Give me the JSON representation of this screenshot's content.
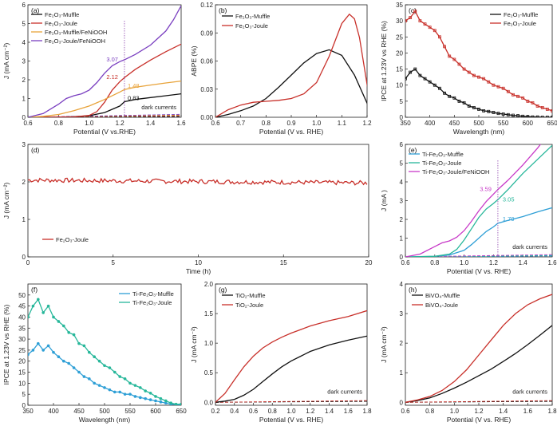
{
  "chart_data": [
    {
      "type": "line",
      "panel_label": "(a)",
      "xlabel": "Potential (V vs.RHE)",
      "ylabel": "J (mA cm⁻²)",
      "xlim": [
        0.6,
        1.6
      ],
      "ylim": [
        0,
        6
      ],
      "xticks": [
        "0.6",
        "0.8",
        "1.0",
        "1.2",
        "1.4",
        "1.6"
      ],
      "yticks": [
        "0",
        "1",
        "2",
        "3",
        "4",
        "5",
        "6"
      ],
      "series": [
        {
          "name": "Fe₂O₃-Muffle",
          "color": "#111111",
          "x": [
            0.6,
            0.8,
            0.9,
            1.0,
            1.1,
            1.2,
            1.23,
            1.3,
            1.4,
            1.5,
            1.6
          ],
          "y": [
            0,
            0.01,
            0.03,
            0.08,
            0.25,
            0.6,
            0.83,
            0.95,
            1.05,
            1.15,
            1.25
          ]
        },
        {
          "name": "Fe₂O₃-Joule",
          "color": "#c8302a",
          "x": [
            0.6,
            0.9,
            1.0,
            1.05,
            1.1,
            1.15,
            1.2,
            1.23,
            1.3,
            1.4,
            1.5,
            1.6
          ],
          "y": [
            0,
            0.02,
            0.1,
            0.3,
            0.8,
            1.45,
            1.9,
            2.12,
            2.55,
            3.05,
            3.5,
            3.9
          ]
        },
        {
          "name": "Fe₂O₃-Muffle/FeNiOOH",
          "color": "#e8a33a",
          "x": [
            0.6,
            0.7,
            0.8,
            0.9,
            1.0,
            1.1,
            1.2,
            1.23,
            1.3,
            1.4,
            1.5,
            1.6
          ],
          "y": [
            0,
            0.05,
            0.15,
            0.35,
            0.6,
            0.95,
            1.35,
            1.48,
            1.6,
            1.72,
            1.83,
            1.93
          ]
        },
        {
          "name": "Fe₂O₃-Joule/FeNiOOH",
          "color": "#7a3fc0",
          "x": [
            0.6,
            0.7,
            0.8,
            0.85,
            0.9,
            0.95,
            1.0,
            1.05,
            1.1,
            1.15,
            1.2,
            1.23,
            1.3,
            1.4,
            1.5,
            1.55,
            1.6
          ],
          "y": [
            0,
            0.2,
            0.7,
            1.0,
            1.15,
            1.25,
            1.45,
            1.85,
            2.35,
            2.75,
            2.97,
            3.07,
            3.35,
            3.85,
            4.6,
            5.2,
            5.95
          ]
        }
      ],
      "dark_currents_label": "dark currents",
      "annotations": [
        "3.07",
        "2.12",
        "1.48",
        "0.83"
      ]
    },
    {
      "type": "line",
      "panel_label": "(b)",
      "xlabel": "Potential (V vs. RHE)",
      "ylabel": "ABPE (%)",
      "xlim": [
        0.6,
        1.2
      ],
      "ylim": [
        0,
        0.12
      ],
      "xticks": [
        "0.6",
        "0.7",
        "0.8",
        "0.9",
        "1.0",
        "1.1",
        "1.2"
      ],
      "yticks": [
        "0.00",
        "0.03",
        "0.06",
        "0.09",
        "0.12"
      ],
      "series": [
        {
          "name": "Fe₂O₃-Muffle",
          "color": "#111111",
          "x": [
            0.6,
            0.65,
            0.7,
            0.75,
            0.8,
            0.85,
            0.9,
            0.95,
            1.0,
            1.05,
            1.1,
            1.15,
            1.2,
            1.22
          ],
          "y": [
            0,
            0.003,
            0.007,
            0.012,
            0.02,
            0.032,
            0.045,
            0.058,
            0.068,
            0.072,
            0.066,
            0.045,
            0.015,
            0.004
          ]
        },
        {
          "name": "Fe₂O₃-Joule",
          "color": "#c8302a",
          "x": [
            0.6,
            0.65,
            0.7,
            0.75,
            0.8,
            0.85,
            0.9,
            0.95,
            1.0,
            1.05,
            1.1,
            1.13,
            1.15,
            1.17,
            1.2,
            1.22
          ],
          "y": [
            0,
            0.008,
            0.013,
            0.016,
            0.017,
            0.018,
            0.02,
            0.025,
            0.037,
            0.065,
            0.1,
            0.11,
            0.105,
            0.085,
            0.035,
            0.005
          ]
        }
      ]
    },
    {
      "type": "line",
      "panel_label": "(c)",
      "xlabel": "Wavelength (nm)",
      "ylabel": "IPCE at 1.23V vs RHE (%)",
      "xlim": [
        350,
        650
      ],
      "ylim": [
        0,
        35
      ],
      "xticks": [
        "350",
        "400",
        "450",
        "500",
        "550",
        "600",
        "650"
      ],
      "yticks": [
        "0",
        "5",
        "10",
        "15",
        "20",
        "25",
        "30",
        "35"
      ],
      "series": [
        {
          "name": "Fe₂O₃-Muffle",
          "color": "#111111",
          "x": [
            350,
            360,
            370,
            380,
            390,
            400,
            410,
            420,
            430,
            440,
            450,
            460,
            470,
            480,
            490,
            500,
            510,
            520,
            530,
            540,
            550,
            560,
            570,
            580,
            590,
            600,
            610,
            620,
            630,
            640,
            650
          ],
          "y": [
            12,
            14,
            15,
            13,
            12,
            11,
            10,
            9,
            7.5,
            6.5,
            6,
            5,
            4.5,
            3.5,
            3,
            2.5,
            2,
            1.8,
            1.5,
            1.2,
            1,
            0.8,
            0.6,
            0.5,
            0.3,
            0.2,
            0.1,
            0.1,
            0,
            0,
            0
          ]
        },
        {
          "name": "Fe₂O₃-Joule",
          "color": "#c8302a",
          "x": [
            350,
            360,
            370,
            380,
            390,
            400,
            410,
            420,
            430,
            440,
            450,
            460,
            470,
            480,
            490,
            500,
            510,
            520,
            530,
            540,
            550,
            560,
            570,
            580,
            590,
            600,
            610,
            620,
            630,
            640,
            650
          ],
          "y": [
            30,
            31,
            33,
            30,
            29,
            28,
            27,
            25,
            22,
            19,
            18,
            16.5,
            15,
            14,
            13,
            12.5,
            12,
            11,
            10,
            9.5,
            9,
            8,
            7,
            6.5,
            6,
            5,
            4.5,
            3.5,
            3,
            2.5,
            2
          ]
        }
      ]
    },
    {
      "type": "line",
      "panel_label": "(d)",
      "xlabel": "Time (h)",
      "ylabel": "J (mA cm⁻²)",
      "xlim": [
        0,
        20
      ],
      "ylim": [
        0,
        3
      ],
      "xticks": [
        "0",
        "5",
        "10",
        "15",
        "20"
      ],
      "yticks": [
        "0",
        "1",
        "2",
        "3"
      ],
      "series": [
        {
          "name": "Fe₂O₃-Joule",
          "color": "#c8302a",
          "x": [
            0,
            20
          ],
          "y": [
            2.05,
            1.97
          ]
        }
      ]
    },
    {
      "type": "line",
      "panel_label": "(e)",
      "xlabel": "Potential (V vs. RHE)",
      "ylabel": "J (mA )",
      "xlim": [
        0.6,
        1.6
      ],
      "ylim": [
        0,
        6
      ],
      "xticks": [
        "0.6",
        "0.8",
        "1.0",
        "1.2",
        "1.4",
        "1.6"
      ],
      "yticks": [
        "0",
        "1",
        "2",
        "3",
        "4",
        "5",
        "6"
      ],
      "series": [
        {
          "name": "Ti-Fe₂O₃-Muffle",
          "color": "#2e9fd6",
          "x": [
            0.6,
            0.8,
            0.9,
            1.0,
            1.05,
            1.1,
            1.15,
            1.2,
            1.23,
            1.3,
            1.4,
            1.5,
            1.6
          ],
          "y": [
            0,
            0.03,
            0.1,
            0.35,
            0.65,
            1.0,
            1.35,
            1.6,
            1.79,
            1.95,
            2.15,
            2.4,
            2.62
          ]
        },
        {
          "name": "Ti-Fe₂O₃-Joule",
          "color": "#27b79a",
          "x": [
            0.6,
            0.8,
            0.9,
            0.95,
            1.0,
            1.05,
            1.1,
            1.15,
            1.2,
            1.23,
            1.3,
            1.4,
            1.5,
            1.6
          ],
          "y": [
            0,
            0.03,
            0.15,
            0.4,
            0.9,
            1.5,
            2.1,
            2.55,
            2.85,
            3.05,
            3.6,
            4.45,
            5.2,
            5.95
          ]
        },
        {
          "name": "Ti-Fe₂O₃-Joule/FeNiOOH",
          "color": "#c83ac8",
          "x": [
            0.6,
            0.7,
            0.8,
            0.85,
            0.9,
            0.95,
            1.0,
            1.05,
            1.1,
            1.15,
            1.2,
            1.23,
            1.3,
            1.4,
            1.5,
            1.55
          ],
          "y": [
            0,
            0.15,
            0.55,
            0.75,
            0.85,
            1.05,
            1.4,
            1.9,
            2.45,
            2.95,
            3.35,
            3.59,
            4.1,
            4.9,
            5.8,
            6.3
          ]
        }
      ],
      "dark_currents_label": "dark currents",
      "annotations": [
        "3.59",
        "3.05",
        "1.79"
      ]
    },
    {
      "type": "line",
      "panel_label": "(f)",
      "xlabel": "Wavelength (nm)",
      "ylabel": "IPCE at 1.23V vs RHE (%)",
      "xlim": [
        350,
        650
      ],
      "ylim": [
        0,
        55
      ],
      "xticks": [
        "350",
        "400",
        "450",
        "500",
        "550",
        "600",
        "650"
      ],
      "yticks": [
        "0",
        "5",
        "10",
        "15",
        "20",
        "25",
        "30",
        "35",
        "40",
        "45",
        "50"
      ],
      "series": [
        {
          "name": "Ti-Fe₂O₃-Muffle",
          "color": "#2e9fd6",
          "x": [
            350,
            360,
            370,
            380,
            390,
            400,
            410,
            420,
            430,
            440,
            450,
            460,
            470,
            480,
            490,
            500,
            510,
            520,
            530,
            540,
            550,
            560,
            570,
            580,
            590,
            600,
            610,
            620,
            630,
            640,
            650
          ],
          "y": [
            23,
            25,
            28,
            25,
            27,
            24,
            22,
            20,
            19,
            17,
            15,
            13,
            12,
            10,
            9,
            8,
            7,
            6,
            6,
            5,
            5,
            4,
            3.5,
            3,
            2.5,
            2,
            1.5,
            1,
            0.5,
            0.3,
            0
          ]
        },
        {
          "name": "Ti-Fe₂O₃-Joule",
          "color": "#27b79a",
          "x": [
            350,
            360,
            370,
            380,
            390,
            400,
            410,
            420,
            430,
            440,
            450,
            460,
            470,
            480,
            490,
            500,
            510,
            520,
            530,
            540,
            550,
            560,
            570,
            580,
            590,
            600,
            610,
            620,
            630,
            640,
            650
          ],
          "y": [
            40,
            45,
            48,
            42,
            45,
            40,
            38,
            36,
            33,
            32,
            28,
            27,
            24,
            22,
            20,
            18,
            17,
            15,
            13,
            12,
            10,
            9,
            8,
            6.5,
            5.5,
            4,
            3,
            2,
            1,
            0.5,
            0.5
          ]
        }
      ]
    },
    {
      "type": "line",
      "panel_label": "(g)",
      "xlabel": "Potential (V vs. RHE)",
      "ylabel": "J (mA cm⁻²)",
      "xlim": [
        0.2,
        1.8
      ],
      "ylim": [
        -0.05,
        2.0
      ],
      "xticks": [
        "0.2",
        "0.4",
        "0.6",
        "0.8",
        "1.0",
        "1.2",
        "1.4",
        "1.6",
        "1.8"
      ],
      "yticks": [
        "0.0",
        "0.5",
        "1.0",
        "1.5",
        "2.0"
      ],
      "series": [
        {
          "name": "TiO₂-Muffle",
          "color": "#111111",
          "x": [
            0.2,
            0.3,
            0.4,
            0.5,
            0.6,
            0.7,
            0.8,
            0.9,
            1.0,
            1.1,
            1.2,
            1.4,
            1.6,
            1.8
          ],
          "y": [
            0,
            0.02,
            0.05,
            0.12,
            0.22,
            0.35,
            0.48,
            0.6,
            0.7,
            0.78,
            0.86,
            0.97,
            1.05,
            1.12
          ]
        },
        {
          "name": "TiO₂-Joule",
          "color": "#c8302a",
          "x": [
            0.2,
            0.3,
            0.4,
            0.5,
            0.6,
            0.7,
            0.8,
            0.9,
            1.0,
            1.1,
            1.2,
            1.4,
            1.6,
            1.8
          ],
          "y": [
            0,
            0.15,
            0.38,
            0.6,
            0.78,
            0.92,
            1.02,
            1.1,
            1.17,
            1.23,
            1.29,
            1.38,
            1.45,
            1.55
          ]
        }
      ],
      "dark_currents_label": "dark currents"
    },
    {
      "type": "line",
      "panel_label": "(h)",
      "xlabel": "Potential (V vs. RHE)",
      "ylabel": "J (mA cm⁻²)",
      "xlim": [
        0.6,
        1.8
      ],
      "ylim": [
        -0.1,
        4.0
      ],
      "xticks": [
        "0.6",
        "0.8",
        "1.0",
        "1.2",
        "1.4",
        "1.6",
        "1.8"
      ],
      "yticks": [
        "0",
        "1",
        "2",
        "3",
        "4"
      ],
      "series": [
        {
          "name": "BiVO₄-Muffle",
          "color": "#111111",
          "x": [
            0.6,
            0.7,
            0.8,
            0.9,
            1.0,
            1.1,
            1.2,
            1.3,
            1.4,
            1.5,
            1.6,
            1.7,
            1.8
          ],
          "y": [
            0,
            0.06,
            0.15,
            0.3,
            0.48,
            0.68,
            0.9,
            1.12,
            1.38,
            1.65,
            1.95,
            2.27,
            2.6
          ]
        },
        {
          "name": "BiVO₄-Joule",
          "color": "#c8302a",
          "x": [
            0.6,
            0.7,
            0.8,
            0.9,
            1.0,
            1.1,
            1.2,
            1.3,
            1.4,
            1.5,
            1.6,
            1.7,
            1.8
          ],
          "y": [
            0,
            0.08,
            0.2,
            0.4,
            0.7,
            1.1,
            1.6,
            2.1,
            2.6,
            3.0,
            3.3,
            3.5,
            3.65
          ]
        }
      ],
      "dark_currents_label": "dark currents"
    }
  ]
}
